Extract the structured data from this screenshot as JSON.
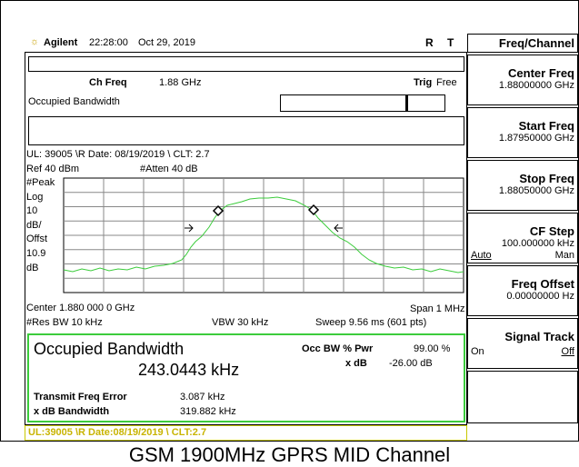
{
  "header": {
    "brand": "Agilent",
    "time": "22:28:00",
    "date": "Oct 29, 2019",
    "flags": [
      "R",
      "T"
    ]
  },
  "menu": {
    "title": "Freq/Channel",
    "keys": [
      {
        "label": "Center Freq",
        "value": "1.88000000 GHz"
      },
      {
        "label": "Start Freq",
        "value": "1.87950000 GHz"
      },
      {
        "label": "Stop Freq",
        "value": "1.88050000 GHz"
      },
      {
        "label": "CF Step",
        "value": "100.000000 kHz",
        "options": [
          "Auto",
          "Man"
        ]
      },
      {
        "label": "Freq Offset",
        "value": "0.00000000 Hz"
      },
      {
        "label": "Signal Track",
        "options": [
          "On",
          "Off"
        ]
      }
    ]
  },
  "display": {
    "ch_freq_label": "Ch Freq",
    "ch_freq": "1.88 GHz",
    "trig_label": "Trig",
    "trig": "Free",
    "measurement": "Occupied Bandwidth",
    "info": "UL: 39005 \\R Date: 08/19/2019 \\ CLT: 2.7",
    "ref": "Ref 40 dBm",
    "atten": "#Atten 40 dB",
    "left_labels": [
      "#Peak",
      "Log",
      "10",
      "dB/",
      "Offst",
      "10.9",
      "dB"
    ],
    "center": "Center 1.880 000 0 GHz",
    "span": "Span 1 MHz",
    "res_bw": "#Res BW 10 kHz",
    "vbw": "VBW 30 kHz",
    "sweep": "Sweep 9.56 ms (601 pts)"
  },
  "results": {
    "title": "Occupied Bandwidth",
    "obw": "243.0443 kHz",
    "occ_label": "Occ BW % Pwr",
    "occ_value": "99.00 %",
    "xdb_label": "x dB",
    "xdb_value": "-26.00 dB",
    "tfe_label": "Transmit Freq Error",
    "tfe_value": "3.087 kHz",
    "xdbbw_label": "x dB Bandwidth",
    "xdbbw_value": "319.882 kHz"
  },
  "status": "UL:39005 \\R Date:08/19/2019 \\ CLT:2.7",
  "caption": "GSM 1900MHz GPRS MID Channel"
}
